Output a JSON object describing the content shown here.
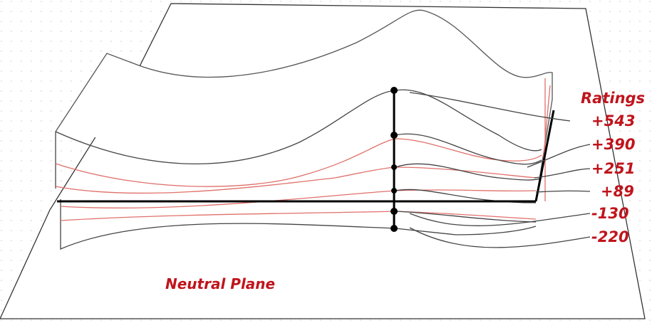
{
  "ratings": {
    "title": "Ratings",
    "labels": [
      "+543",
      "+390",
      "+251",
      "+89",
      "-130",
      "-220"
    ]
  },
  "plane_label": "Neutral Plane"
}
